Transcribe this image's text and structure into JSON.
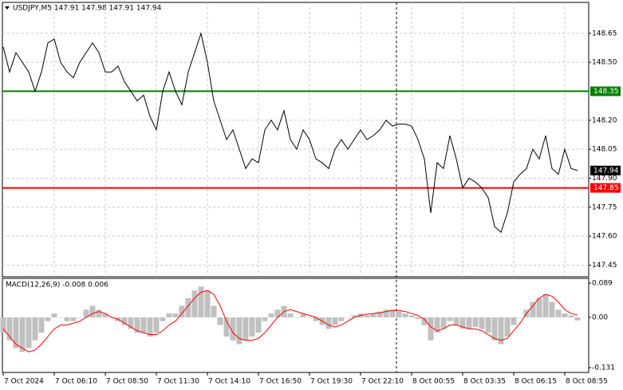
{
  "chart_data": [
    {
      "type": "line",
      "title": "USDJPY,M5  147.91 147.98 147.91 147.94",
      "color": "#000000",
      "categories": [
        "7 Oct 2024",
        null,
        null,
        null,
        null,
        null,
        null,
        null,
        "7 Oct 06:10",
        null,
        null,
        null,
        null,
        null,
        null,
        null,
        "7 Oct 08:50",
        null,
        null,
        null,
        null,
        null,
        null,
        null,
        "7 Oct 11:30",
        null,
        null,
        null,
        null,
        null,
        null,
        null,
        "7 Oct 14:10",
        null,
        null,
        null,
        null,
        null,
        null,
        null,
        "7 Oct 16:50",
        null,
        null,
        null,
        null,
        null,
        null,
        null,
        "7 Oct 19:30",
        null,
        null,
        null,
        null,
        null,
        null,
        null,
        "7 Oct 22:10",
        null,
        null,
        null,
        null,
        null,
        null,
        null,
        "8 Oct 00:55",
        null,
        null,
        null,
        null,
        null,
        null,
        null,
        "8 Oct 03:35",
        null,
        null,
        null,
        null,
        null,
        null,
        null,
        "8 Oct 06:15",
        null,
        null,
        null,
        null,
        null,
        null,
        null,
        "8 Oct 08:55",
        null,
        null
      ],
      "values": [
        148.58,
        148.45,
        148.55,
        148.5,
        148.45,
        148.35,
        148.45,
        148.6,
        148.62,
        148.5,
        148.45,
        148.42,
        148.5,
        148.55,
        148.6,
        148.55,
        148.45,
        148.45,
        148.48,
        148.4,
        148.35,
        148.3,
        148.33,
        148.22,
        148.15,
        148.35,
        148.45,
        148.35,
        148.28,
        148.45,
        148.55,
        148.65,
        148.5,
        148.3,
        148.2,
        148.1,
        148.15,
        148.05,
        147.95,
        148.0,
        147.98,
        148.15,
        148.2,
        148.15,
        148.25,
        148.1,
        148.05,
        148.15,
        148.1,
        148.0,
        147.98,
        147.95,
        148.05,
        148.1,
        148.05,
        148.1,
        148.15,
        148.1,
        148.12,
        148.15,
        148.2,
        148.17,
        148.18,
        148.18,
        148.17,
        148.1,
        148.0,
        147.72,
        147.98,
        147.95,
        148.12,
        148.0,
        147.85,
        147.9,
        147.88,
        147.85,
        147.8,
        147.65,
        147.62,
        147.72,
        147.88,
        147.92,
        147.95,
        148.05,
        148.0,
        148.12,
        147.95,
        147.92,
        148.05,
        147.95,
        147.94
      ],
      "ylim": [
        147.39,
        148.81
      ],
      "yticks": [
        {
          "value": 148.65,
          "label": "148.65"
        },
        {
          "value": 148.5,
          "label": "148.50"
        },
        {
          "value": 148.2,
          "label": "148.20"
        },
        {
          "value": 148.05,
          "label": "148.05"
        },
        {
          "value": 147.9,
          "label": "147.90"
        },
        {
          "value": 147.75,
          "label": "147.75"
        },
        {
          "value": 147.6,
          "label": "147.60"
        },
        {
          "value": 147.45,
          "label": "147.45"
        }
      ],
      "grid": true,
      "levels": [
        {
          "value": 148.35,
          "label": "148.35",
          "color": "#008000"
        },
        {
          "value": 147.85,
          "label": "147.85",
          "color": "#ff0000"
        }
      ],
      "last_price": 147.94
    },
    {
      "type": "macd",
      "title": "MACD(12,26,9) -0.008 0.006",
      "histogram": {
        "color": "#c0c0c0",
        "values": [
          -0.04,
          -0.06,
          -0.08,
          -0.09,
          -0.08,
          -0.06,
          -0.04,
          -0.01,
          0.01,
          0,
          -0.01,
          -0.01,
          0,
          0.02,
          0.03,
          0.02,
          0.01,
          0,
          -0.01,
          -0.02,
          -0.03,
          -0.04,
          -0.04,
          -0.05,
          -0.04,
          -0.01,
          0.01,
          0.01,
          0.03,
          0.05,
          0.07,
          0.08,
          0.07,
          0.03,
          -0.02,
          -0.05,
          -0.06,
          -0.07,
          -0.06,
          -0.05,
          -0.04,
          -0.01,
          0.01,
          0.02,
          0.03,
          0.01,
          0,
          0.01,
          0,
          -0.01,
          -0.02,
          -0.03,
          -0.02,
          -0.01,
          0,
          0.005,
          0.01,
          0.005,
          0.01,
          0.015,
          0.02,
          0.02,
          0.015,
          0.01,
          0.005,
          -0.005,
          -0.02,
          -0.06,
          -0.04,
          -0.03,
          -0.01,
          -0.02,
          -0.03,
          -0.03,
          -0.025,
          -0.03,
          -0.04,
          -0.06,
          -0.07,
          -0.05,
          -0.02,
          0,
          0.02,
          0.04,
          0.05,
          0.06,
          0.04,
          0.02,
          0.01,
          0.005,
          -0.008
        ]
      },
      "signal": {
        "color": "#ff0000",
        "values": [
          -0.03,
          -0.05,
          -0.07,
          -0.08,
          -0.09,
          -0.085,
          -0.07,
          -0.05,
          -0.03,
          -0.02,
          -0.02,
          -0.015,
          -0.01,
          0,
          0.01,
          0.015,
          0.01,
          0,
          -0.005,
          -0.015,
          -0.025,
          -0.035,
          -0.04,
          -0.045,
          -0.045,
          -0.035,
          -0.02,
          -0.01,
          0.01,
          0.03,
          0.05,
          0.065,
          0.07,
          0.06,
          0.03,
          -0.01,
          -0.04,
          -0.055,
          -0.06,
          -0.06,
          -0.055,
          -0.04,
          -0.02,
          0,
          0.015,
          0.02,
          0.015,
          0.01,
          0.005,
          0,
          -0.01,
          -0.02,
          -0.025,
          -0.02,
          -0.01,
          0,
          0.005,
          0.008,
          0.01,
          0.012,
          0.015,
          0.018,
          0.018,
          0.015,
          0.01,
          0.005,
          -0.005,
          -0.025,
          -0.035,
          -0.03,
          -0.02,
          -0.02,
          -0.025,
          -0.03,
          -0.03,
          -0.035,
          -0.045,
          -0.055,
          -0.06,
          -0.055,
          -0.035,
          -0.015,
          0.01,
          0.03,
          0.05,
          0.06,
          0.055,
          0.04,
          0.02,
          0.01,
          0.006
        ]
      },
      "ylim": [
        -0.1435,
        0.1015
      ],
      "yticks": [
        0.089,
        {
          "value": 0,
          "label": "0.00"
        },
        -0.131
      ]
    }
  ]
}
